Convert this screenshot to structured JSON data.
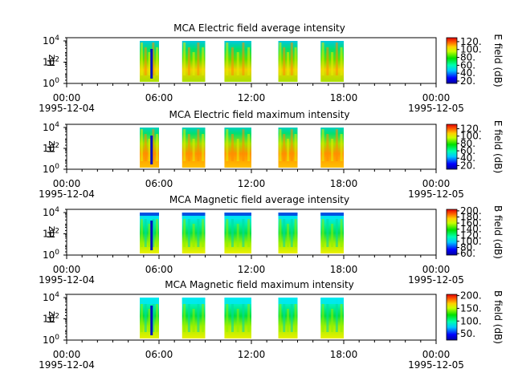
{
  "chart_data": [
    {
      "type": "heatmap",
      "title": "MCA  Electric field average intensity",
      "ylabel": "Hz",
      "yticks": [
        {
          "base": "10",
          "exp": "0"
        },
        {
          "base": "10",
          "exp": "2"
        },
        {
          "base": "10",
          "exp": "4"
        }
      ],
      "ylim": [
        1,
        20000
      ],
      "yscale": "log",
      "xticks": [
        {
          "time": "00:00",
          "date": "1995-12-04"
        },
        {
          "time": "06:00",
          "date": ""
        },
        {
          "time": "12:00",
          "date": ""
        },
        {
          "time": "18:00",
          "date": ""
        },
        {
          "time": "00:00",
          "date": "1995-12-05"
        }
      ],
      "xlim": [
        "1995-12-04 00:00",
        "1995-12-05 00:00"
      ],
      "colorbar": {
        "label": "E field (dB)",
        "ticks": [
          20,
          40,
          60,
          80,
          100,
          120
        ],
        "range": [
          14,
          130
        ]
      },
      "data_intervals": [
        {
          "start": "04:45",
          "end": "06:00"
        },
        {
          "start": "07:30",
          "end": "09:00"
        },
        {
          "start": "10:15",
          "end": "12:00"
        },
        {
          "start": "13:45",
          "end": "15:00"
        },
        {
          "start": "16:30",
          "end": "18:00"
        }
      ]
    },
    {
      "type": "heatmap",
      "title": "MCA  Electric field maximum intensity",
      "ylabel": "Hz",
      "yticks": [
        {
          "base": "10",
          "exp": "0"
        },
        {
          "base": "10",
          "exp": "2"
        },
        {
          "base": "10",
          "exp": "4"
        }
      ],
      "ylim": [
        1,
        20000
      ],
      "yscale": "log",
      "xticks": [
        {
          "time": "00:00",
          "date": "1995-12-04"
        },
        {
          "time": "06:00",
          "date": ""
        },
        {
          "time": "12:00",
          "date": ""
        },
        {
          "time": "18:00",
          "date": ""
        },
        {
          "time": "00:00",
          "date": "1995-12-05"
        }
      ],
      "xlim": [
        "1995-12-04 00:00",
        "1995-12-05 00:00"
      ],
      "colorbar": {
        "label": "E field (dB)",
        "ticks": [
          20,
          40,
          60,
          80,
          100,
          120
        ],
        "range": [
          10,
          132
        ]
      },
      "data_intervals": [
        {
          "start": "04:45",
          "end": "06:00"
        },
        {
          "start": "07:30",
          "end": "09:00"
        },
        {
          "start": "10:15",
          "end": "12:00"
        },
        {
          "start": "13:45",
          "end": "15:00"
        },
        {
          "start": "16:30",
          "end": "18:00"
        }
      ]
    },
    {
      "type": "heatmap",
      "title": "MCA  Magnetic field average intensity",
      "ylabel": "Hz",
      "yticks": [
        {
          "base": "10",
          "exp": "0"
        },
        {
          "base": "10",
          "exp": "2"
        },
        {
          "base": "10",
          "exp": "4"
        }
      ],
      "ylim": [
        1,
        20000
      ],
      "yscale": "log",
      "xticks": [
        {
          "time": "00:00",
          "date": "1995-12-04"
        },
        {
          "time": "06:00",
          "date": ""
        },
        {
          "time": "12:00",
          "date": ""
        },
        {
          "time": "18:00",
          "date": ""
        },
        {
          "time": "00:00",
          "date": "1995-12-05"
        }
      ],
      "xlim": [
        "1995-12-04 00:00",
        "1995-12-05 00:00"
      ],
      "colorbar": {
        "label": "B field (dB)",
        "ticks": [
          60,
          80,
          100,
          120,
          140,
          160,
          180,
          200
        ],
        "range": [
          55,
          205
        ]
      },
      "data_intervals": [
        {
          "start": "04:45",
          "end": "06:00"
        },
        {
          "start": "07:30",
          "end": "09:00"
        },
        {
          "start": "10:15",
          "end": "12:00"
        },
        {
          "start": "13:45",
          "end": "15:00"
        },
        {
          "start": "16:30",
          "end": "18:00"
        }
      ]
    },
    {
      "type": "heatmap",
      "title": "MCA  Magnetic field maximum intensity",
      "ylabel": "Hz",
      "yticks": [
        {
          "base": "10",
          "exp": "0"
        },
        {
          "base": "10",
          "exp": "2"
        },
        {
          "base": "10",
          "exp": "4"
        }
      ],
      "ylim": [
        1,
        20000
      ],
      "yscale": "log",
      "xticks": [
        {
          "time": "00:00",
          "date": "1995-12-04"
        },
        {
          "time": "06:00",
          "date": ""
        },
        {
          "time": "12:00",
          "date": ""
        },
        {
          "time": "18:00",
          "date": ""
        },
        {
          "time": "00:00",
          "date": "1995-12-05"
        }
      ],
      "xlim": [
        "1995-12-04 00:00",
        "1995-12-05 00:00"
      ],
      "colorbar": {
        "label": "B field (dB)",
        "ticks": [
          50,
          100,
          150,
          200
        ],
        "range": [
          25,
          205
        ]
      },
      "data_intervals": [
        {
          "start": "04:45",
          "end": "06:00"
        },
        {
          "start": "07:30",
          "end": "09:00"
        },
        {
          "start": "10:15",
          "end": "12:00"
        },
        {
          "start": "13:45",
          "end": "15:00"
        },
        {
          "start": "16:30",
          "end": "18:00"
        }
      ]
    }
  ]
}
